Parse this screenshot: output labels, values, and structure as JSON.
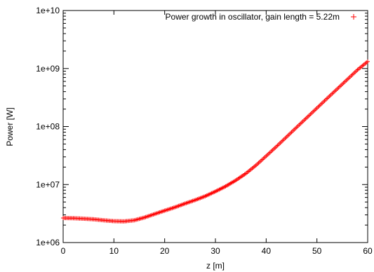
{
  "chart_data": {
    "type": "scatter",
    "title": "",
    "xlabel": "z [m]",
    "ylabel": "Power [W]",
    "xlim": [
      0,
      60
    ],
    "ylim": [
      1000000,
      10000000000
    ],
    "yscale": "log",
    "grid": false,
    "legend_position": "top-right",
    "marker": "+",
    "color": "#ff0000",
    "x_ticks": [
      "0",
      "10",
      "20",
      "30",
      "40",
      "50",
      "60"
    ],
    "y_ticks": [
      "1e+06",
      "1e+07",
      "1e+08",
      "1e+09",
      "1e+10"
    ],
    "series": [
      {
        "name": "Power growth in oscillator, gain length = 5.22m",
        "x": [
          0,
          2,
          4,
          6,
          8,
          10,
          12,
          14,
          16,
          18,
          20,
          22,
          24,
          26,
          28,
          30,
          32,
          34,
          36,
          38,
          40,
          42,
          44,
          46,
          48,
          50,
          52,
          54,
          56,
          58,
          60
        ],
        "y": [
          2650000,
          2630000,
          2580000,
          2520000,
          2420000,
          2340000,
          2320000,
          2420000,
          2700000,
          3100000,
          3550000,
          4050000,
          4700000,
          5400000,
          6300000,
          7600000,
          9300000,
          11800000,
          15500000,
          21500000,
          31000000,
          45000000,
          66000000,
          97000000,
          142000000,
          208000000,
          305000000,
          445000000,
          650000000,
          950000000,
          1320000000
        ]
      }
    ]
  }
}
